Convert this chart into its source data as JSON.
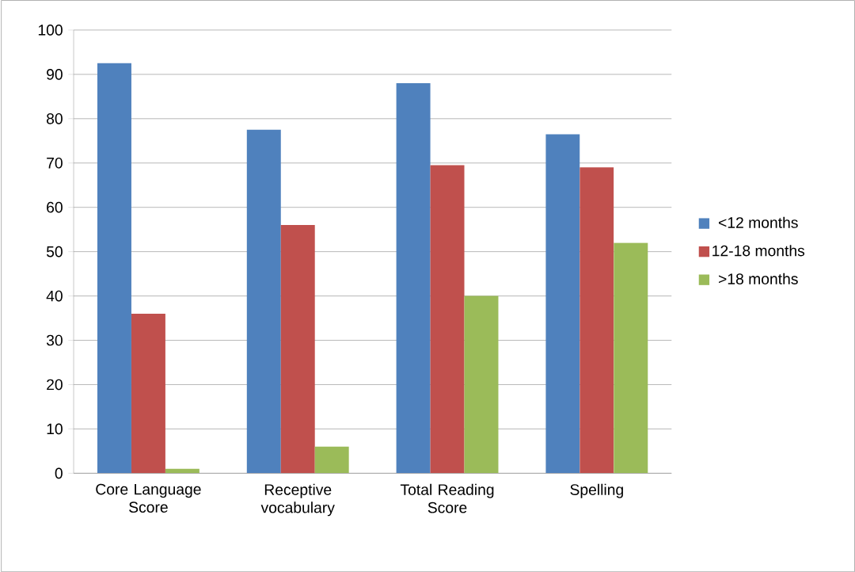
{
  "chart_data": {
    "type": "bar",
    "categories": [
      "Core Language Score",
      "Receptive vocabulary",
      "Total Reading Score",
      "Spelling"
    ],
    "series": [
      {
        "name": "<12 months",
        "color": "#4f81bd",
        "values": [
          92.5,
          77.5,
          88,
          76.5
        ]
      },
      {
        "name": "12-18 months",
        "color": "#c0504d",
        "values": [
          36,
          56,
          69.5,
          69
        ]
      },
      {
        "name": ">18 months",
        "color": "#9bbb59",
        "values": [
          1,
          6,
          40,
          52
        ]
      }
    ],
    "ylim": [
      0,
      100
    ],
    "yticks": [
      0,
      10,
      20,
      30,
      40,
      50,
      60,
      70,
      80,
      90,
      100
    ],
    "grid": "y",
    "legend": "right"
  }
}
